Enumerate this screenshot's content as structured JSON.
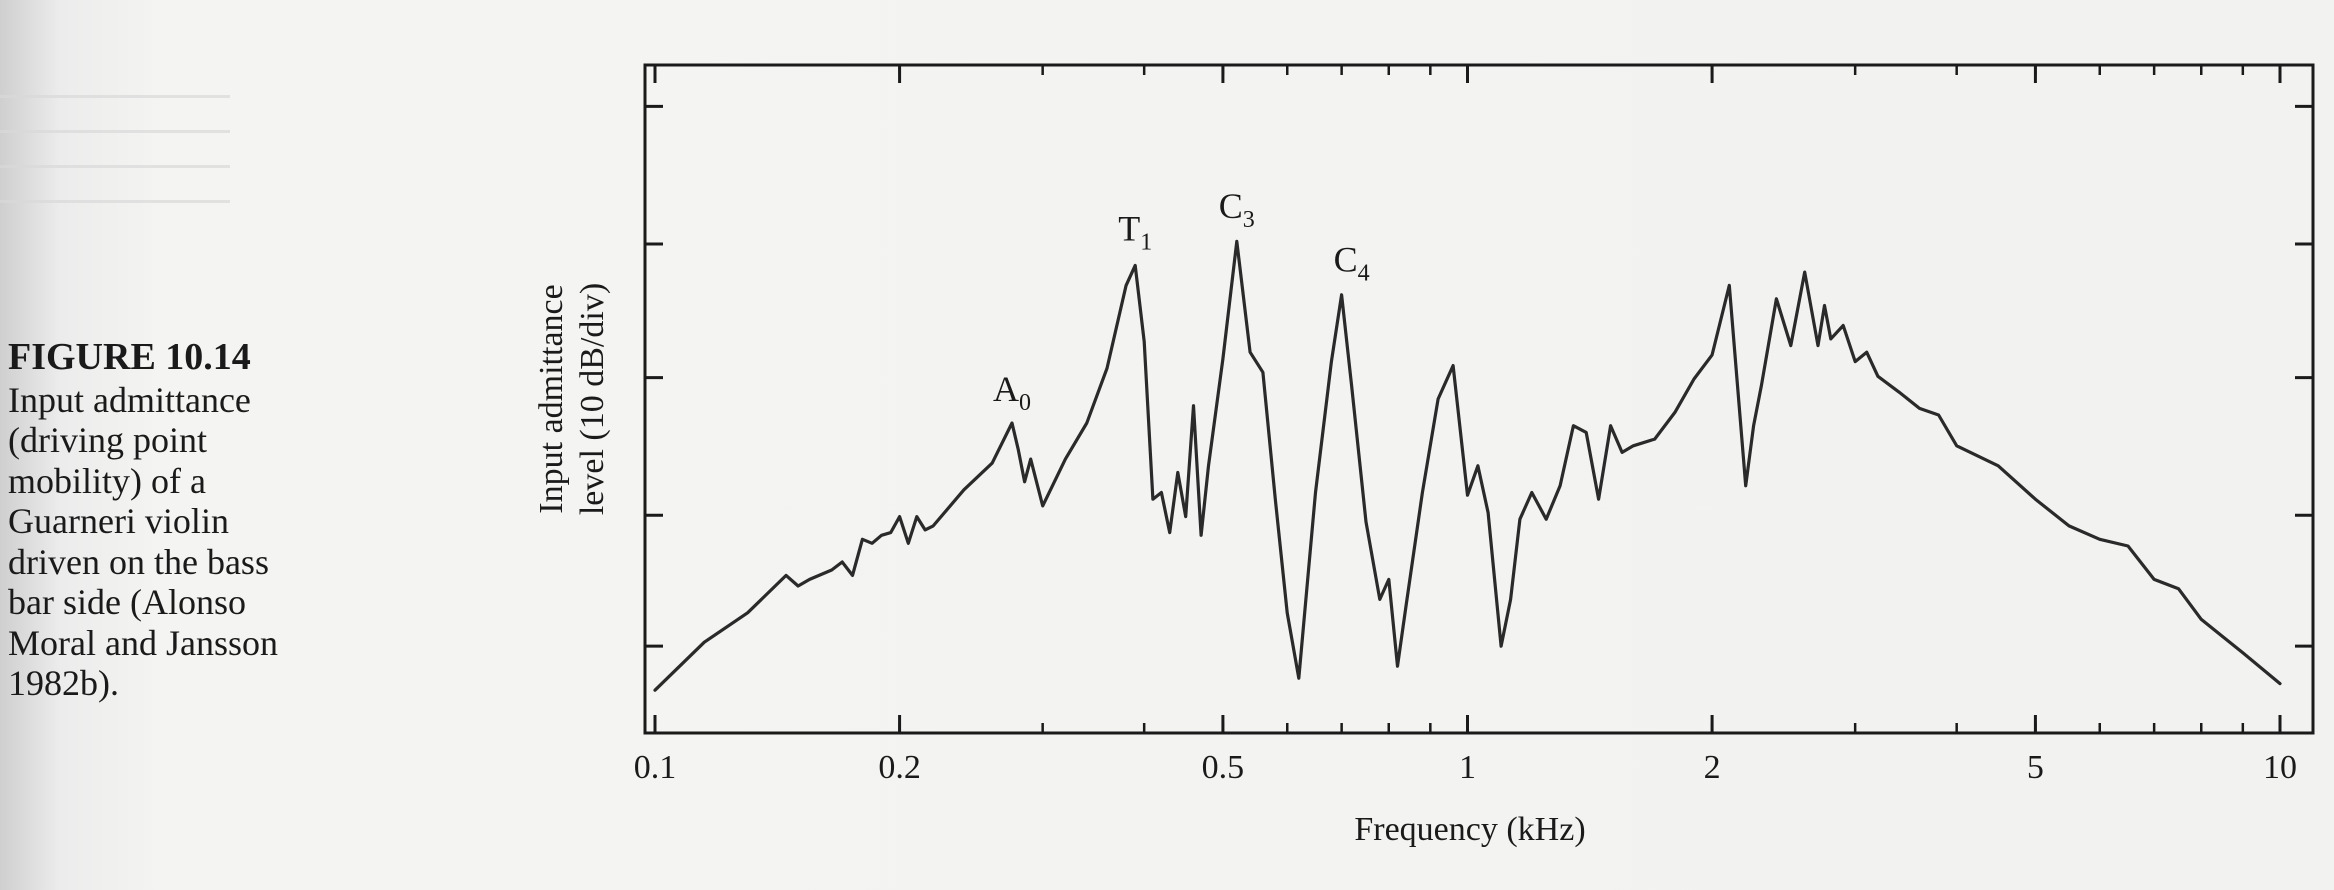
{
  "caption": {
    "title": "FIGURE 10.14",
    "body": "Input admittance\n(driving point\nmobility) of a\nGuarneri violin\ndriven on the bass\nbar side (Alonso\nMoral and Jansson\n1982b)."
  },
  "chart_data": {
    "type": "line",
    "title": "",
    "xlabel": "Frequency (kHz)",
    "ylabel": "Input admittance\nlevel (10 dB/div)",
    "x_scale": "log",
    "xlim": [
      0.1,
      10
    ],
    "ylim": [
      0,
      50
    ],
    "grid": false,
    "x_ticks": [
      {
        "value": 0.1,
        "label": "0.1"
      },
      {
        "value": 0.2,
        "label": "0.2"
      },
      {
        "value": 0.5,
        "label": "0.5"
      },
      {
        "value": 1,
        "label": "1"
      },
      {
        "value": 2,
        "label": "2"
      },
      {
        "value": 5,
        "label": "5"
      },
      {
        "value": 10,
        "label": "10"
      }
    ],
    "y_ticks": [
      6.5,
      16.3,
      26.6,
      36.6,
      46.9
    ],
    "annotations": [
      {
        "base": "A",
        "sub": "0",
        "x": 0.275,
        "y": 23.2
      },
      {
        "base": "T",
        "sub": "1",
        "x": 0.39,
        "y": 35.2
      },
      {
        "base": "C",
        "sub": "3",
        "x": 0.52,
        "y": 36.9
      },
      {
        "base": "C",
        "sub": "4",
        "x": 0.72,
        "y": 32.9
      }
    ],
    "series": [
      {
        "x": [
          0.1,
          0.115,
          0.13,
          0.145,
          0.15,
          0.155,
          0.165,
          0.17,
          0.175,
          0.18,
          0.185,
          0.19,
          0.195,
          0.2,
          0.205,
          0.21,
          0.215,
          0.22,
          0.24,
          0.26,
          0.275,
          0.28,
          0.285,
          0.29,
          0.3,
          0.32,
          0.34,
          0.36,
          0.38,
          0.39,
          0.4,
          0.41,
          0.42,
          0.43,
          0.44,
          0.45,
          0.46,
          0.47,
          0.48,
          0.5,
          0.52,
          0.54,
          0.56,
          0.58,
          0.6,
          0.62,
          0.65,
          0.68,
          0.7,
          0.72,
          0.75,
          0.78,
          0.8,
          0.82,
          0.84,
          0.88,
          0.92,
          0.96,
          1.0,
          1.03,
          1.06,
          1.1,
          1.13,
          1.16,
          1.2,
          1.25,
          1.3,
          1.35,
          1.4,
          1.45,
          1.5,
          1.55,
          1.6,
          1.7,
          1.8,
          1.9,
          2.0,
          2.1,
          2.2,
          2.25,
          2.3,
          2.4,
          2.5,
          2.6,
          2.7,
          2.75,
          2.8,
          2.9,
          3.0,
          3.1,
          3.2,
          3.4,
          3.6,
          3.8,
          4.0,
          4.5,
          5.0,
          5.5,
          6.0,
          6.5,
          7.0,
          7.5,
          8.0,
          9.0,
          10.0
        ],
        "y": [
          3.2,
          6.8,
          9.0,
          11.8,
          11.0,
          11.5,
          12.2,
          12.8,
          11.8,
          14.5,
          14.2,
          14.8,
          15.0,
          16.2,
          14.2,
          16.2,
          15.2,
          15.5,
          18.2,
          20.2,
          23.2,
          21.2,
          18.8,
          20.5,
          17.0,
          20.5,
          23.2,
          27.3,
          33.5,
          35.0,
          29.3,
          17.5,
          18.0,
          15.0,
          19.5,
          16.2,
          24.5,
          14.8,
          20.0,
          28.0,
          36.8,
          28.5,
          27.0,
          17.5,
          9.0,
          4.1,
          18.0,
          27.8,
          32.8,
          26.0,
          15.8,
          10.0,
          11.5,
          5.0,
          9.5,
          18.0,
          25.0,
          27.5,
          17.8,
          20.0,
          16.5,
          6.5,
          10.0,
          16.0,
          18.0,
          16.0,
          18.5,
          23.0,
          22.5,
          17.5,
          23.0,
          21.0,
          21.5,
          22.0,
          24.0,
          26.5,
          28.3,
          33.5,
          18.5,
          23.0,
          26.0,
          32.5,
          29.0,
          34.5,
          29.0,
          32.0,
          29.5,
          30.5,
          27.8,
          28.5,
          26.7,
          25.5,
          24.3,
          23.8,
          21.5,
          20.0,
          17.5,
          15.5,
          14.5,
          14.0,
          11.5,
          10.8,
          8.5,
          6.0,
          3.7
        ]
      }
    ]
  }
}
